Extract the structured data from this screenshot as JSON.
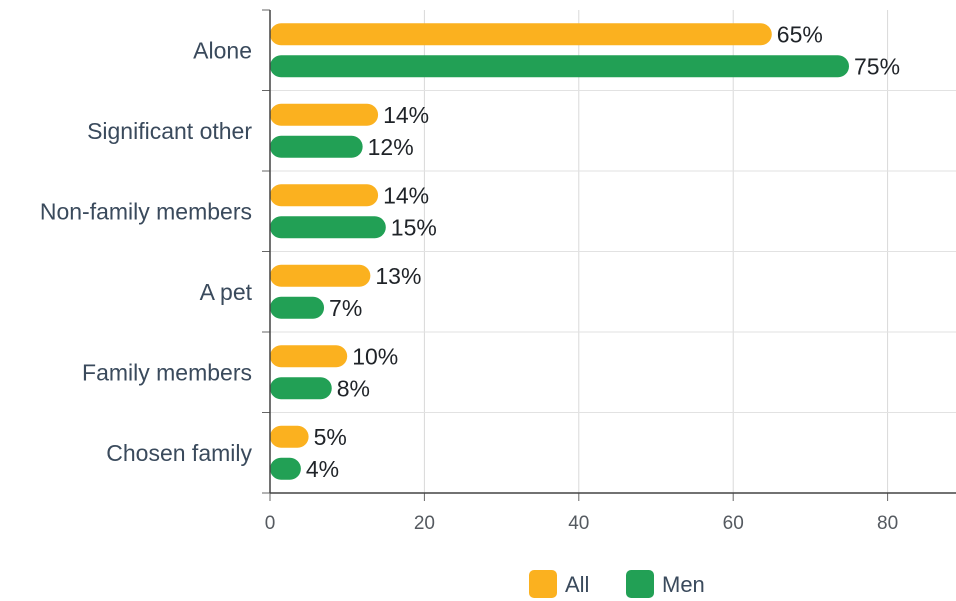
{
  "chart_data": {
    "type": "bar",
    "orientation": "horizontal",
    "categories": [
      "Alone",
      "Significant other",
      "Non-family members",
      "A pet",
      "Family members",
      "Chosen family"
    ],
    "series": [
      {
        "name": "All",
        "values": [
          65,
          14,
          14,
          13,
          10,
          5
        ],
        "color": "#fbb11f"
      },
      {
        "name": "Men",
        "values": [
          75,
          12,
          15,
          7,
          8,
          4
        ],
        "color": "#22a055"
      }
    ],
    "value_suffix": "%",
    "xlim": [
      0,
      88
    ],
    "xticks": [
      0,
      20,
      40,
      60,
      80
    ],
    "grid": true,
    "legend_position": "bottom"
  }
}
